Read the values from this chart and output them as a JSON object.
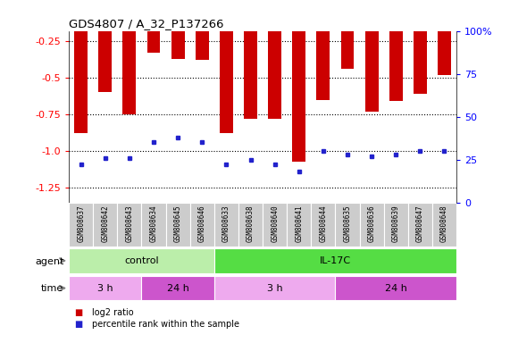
{
  "title": "GDS4807 / A_32_P137266",
  "samples": [
    "GSM808637",
    "GSM808642",
    "GSM808643",
    "GSM808634",
    "GSM808645",
    "GSM808646",
    "GSM808633",
    "GSM808638",
    "GSM808640",
    "GSM808641",
    "GSM808644",
    "GSM808635",
    "GSM808636",
    "GSM808639",
    "GSM808647",
    "GSM808648"
  ],
  "log2_ratios": [
    -0.88,
    -0.6,
    -0.75,
    -0.33,
    -0.37,
    -0.38,
    -0.88,
    -0.78,
    -0.78,
    -1.07,
    -0.65,
    -0.44,
    -0.73,
    -0.66,
    -0.61,
    -0.48
  ],
  "percentile_ranks": [
    22,
    26,
    26,
    35,
    38,
    35,
    22,
    25,
    22,
    18,
    30,
    28,
    27,
    28,
    30,
    30
  ],
  "ylim_left": [
    -1.35,
    -0.18
  ],
  "ylim_right": [
    0,
    100
  ],
  "yticks_left": [
    -1.25,
    -1.0,
    -0.75,
    -0.5,
    -0.25
  ],
  "yticks_right": [
    0,
    25,
    50,
    75,
    100
  ],
  "bar_color": "#cc0000",
  "marker_color": "#2222cc",
  "agent_groups": [
    {
      "label": "control",
      "start": 0,
      "end": 6,
      "color": "#bbeeaa"
    },
    {
      "label": "IL-17C",
      "start": 6,
      "end": 16,
      "color": "#55dd44"
    }
  ],
  "time_groups": [
    {
      "label": "3 h",
      "start": 0,
      "end": 3,
      "color": "#eeaaee"
    },
    {
      "label": "24 h",
      "start": 3,
      "end": 6,
      "color": "#cc55cc"
    },
    {
      "label": "3 h",
      "start": 6,
      "end": 11,
      "color": "#eeaaee"
    },
    {
      "label": "24 h",
      "start": 11,
      "end": 16,
      "color": "#cc55cc"
    }
  ],
  "legend_red_label": "log2 ratio",
  "legend_blue_label": "percentile rank within the sample",
  "legend_red_color": "#cc0000",
  "legend_blue_color": "#2222cc",
  "xlabel_bg": "#cccccc",
  "bar_width": 0.55
}
